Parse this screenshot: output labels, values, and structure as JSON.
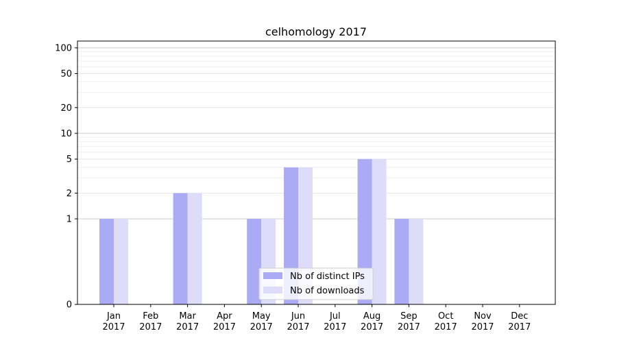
{
  "chart_data": {
    "type": "bar",
    "title": "celhomology 2017",
    "xlabel": "",
    "ylabel": "",
    "categories": [
      "Jan\n2017",
      "Feb\n2017",
      "Mar\n2017",
      "Apr\n2017",
      "May\n2017",
      "Jun\n2017",
      "Jul\n2017",
      "Aug\n2017",
      "Sep\n2017",
      "Oct\n2017",
      "Nov\n2017",
      "Dec\n2017"
    ],
    "series": [
      {
        "name": "Nb of distinct IPs",
        "color": "#aaaaf5",
        "values": [
          1,
          0,
          2,
          0,
          1,
          4,
          0,
          5,
          1,
          0,
          0,
          0
        ]
      },
      {
        "name": "Nb of downloads",
        "color": "#ddddfa",
        "values": [
          1,
          0,
          2,
          0,
          1,
          4,
          0,
          5,
          1,
          0,
          0,
          0
        ]
      }
    ],
    "yscale": "symlog",
    "ylim": [
      0,
      120
    ],
    "yticks": [
      0,
      1,
      2,
      5,
      10,
      20,
      50,
      100
    ],
    "legend_position": "lower-center",
    "grid": true
  }
}
